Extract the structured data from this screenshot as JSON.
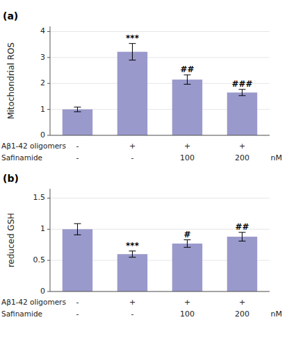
{
  "chart_data": [
    {
      "type": "bar",
      "title": "(a)",
      "ylabel": "Mitochondrial ROS",
      "ylim": [
        0,
        4.2
      ],
      "yticks": [
        0,
        1,
        2,
        3,
        4
      ],
      "values": [
        1.0,
        3.22,
        2.15,
        1.65
      ],
      "errors": [
        0.09,
        0.32,
        0.18,
        0.12
      ],
      "annotations": [
        null,
        "***",
        "##",
        "###"
      ],
      "color": "#9999cc",
      "category_rows": [
        {
          "label": "Aβ1-42 oligomers",
          "values": [
            "-",
            "+",
            "+",
            "+"
          ]
        },
        {
          "label": "Safinamide",
          "values": [
            "-",
            "-",
            "100",
            "200"
          ],
          "unit": "nM"
        }
      ]
    },
    {
      "type": "bar",
      "title": "(b)",
      "ylabel": "reduced GSH",
      "ylim": [
        0,
        1.65
      ],
      "yticks": [
        0,
        0.5,
        1.0,
        1.5
      ],
      "values": [
        1.0,
        0.6,
        0.77,
        0.88
      ],
      "errors": [
        0.09,
        0.05,
        0.06,
        0.07
      ],
      "annotations": [
        null,
        "***",
        "#",
        "##"
      ],
      "color": "#9999cc",
      "category_rows": [
        {
          "label": "Aβ1-42 oligomers",
          "values": [
            "-",
            "+",
            "+",
            "+"
          ]
        },
        {
          "label": "Safinamide",
          "values": [
            "-",
            "-",
            "100",
            "200"
          ],
          "unit": "nM"
        }
      ]
    }
  ]
}
